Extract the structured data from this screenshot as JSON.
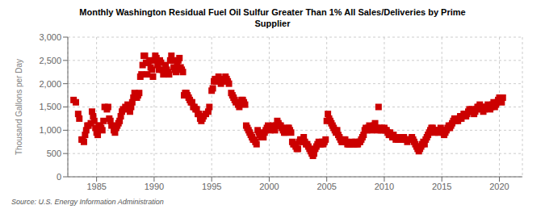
{
  "chart_data": {
    "type": "scatter",
    "title": "Monthly Washington Residual Fuel Oil Sulfur Greater Than 1% All Sales/Deliveries by Prime\nSupplier",
    "ylabel": "Thousand Gallons per Day",
    "annotations": [
      "Source: U.S. Energy Information Administration"
    ],
    "color": "#cc0000",
    "marker": "square",
    "grid": true,
    "xlim": [
      1982.5,
      2022.0
    ],
    "ylim": [
      0,
      3000
    ],
    "xticks": [
      1985,
      1990,
      1995,
      2000,
      2005,
      2010,
      2015,
      2020
    ],
    "yticks": [
      0,
      500,
      {
        "value": 1000,
        "label": "1,000"
      },
      {
        "value": 1500,
        "label": "1,500"
      },
      {
        "value": 2000,
        "label": "2,000"
      },
      {
        "value": 2500,
        "label": "2,500"
      },
      {
        "value": 3000,
        "label": "3,000"
      }
    ],
    "x": [
      1983.0,
      1983.2,
      1983.4,
      1983.5,
      1983.7,
      1983.8,
      1983.9,
      1984.0,
      1984.1,
      1984.2,
      1984.3,
      1984.5,
      1984.6,
      1984.7,
      1984.8,
      1984.9,
      1985.0,
      1985.1,
      1985.2,
      1985.3,
      1985.4,
      1985.5,
      1985.6,
      1985.7,
      1985.9,
      1986.0,
      1986.1,
      1986.2,
      1986.3,
      1986.5,
      1986.6,
      1986.7,
      1986.8,
      1986.9,
      1987.0,
      1987.1,
      1987.2,
      1987.3,
      1987.5,
      1987.7,
      1987.8,
      1987.9,
      1988.0,
      1988.1,
      1988.2,
      1988.3,
      1988.4,
      1988.5,
      1988.6,
      1988.7,
      1988.8,
      1988.9,
      1989.0,
      1989.1,
      1989.2,
      1989.3,
      1989.4,
      1989.5,
      1989.6,
      1989.7,
      1989.8,
      1989.9,
      1990.0,
      1990.1,
      1990.2,
      1990.3,
      1990.4,
      1990.5,
      1990.6,
      1990.7,
      1990.8,
      1990.9,
      1991.0,
      1991.1,
      1991.2,
      1991.3,
      1991.4,
      1991.5,
      1991.6,
      1991.7,
      1991.8,
      1991.9,
      1992.0,
      1992.1,
      1992.2,
      1992.3,
      1992.4,
      1992.5,
      1992.6,
      1992.7,
      1992.8,
      1992.9,
      1993.0,
      1993.1,
      1993.2,
      1993.3,
      1993.4,
      1993.5,
      1993.6,
      1993.7,
      1993.8,
      1993.9,
      1994.0,
      1994.1,
      1994.2,
      1994.3,
      1994.5,
      1994.7,
      1994.8,
      1995.0,
      1995.1,
      1995.2,
      1995.3,
      1995.4,
      1995.5,
      1995.6,
      1995.7,
      1995.8,
      1995.9,
      1996.0,
      1996.1,
      1996.2,
      1996.3,
      1996.4,
      1996.5,
      1996.7,
      1996.8,
      1996.9,
      1997.0,
      1997.1,
      1997.3,
      1997.4,
      1997.5,
      1997.6,
      1997.7,
      1997.8,
      1997.9,
      1998.0,
      1998.1,
      1998.2,
      1998.3,
      1998.4,
      1998.5,
      1998.6,
      1998.7,
      1998.8,
      1998.9,
      1999.0,
      1999.1,
      1999.2,
      1999.3,
      1999.4,
      1999.5,
      1999.6,
      1999.7,
      1999.8,
      1999.9,
      2000.0,
      2000.1,
      2000.2,
      2000.3,
      2000.4,
      2000.5,
      2000.6,
      2000.7,
      2000.8,
      2000.9,
      2001.0,
      2001.1,
      2001.2,
      2001.3,
      2001.4,
      2001.5,
      2001.6,
      2001.7,
      2001.8,
      2001.9,
      2002.0,
      2002.1,
      2002.2,
      2002.3,
      2002.4,
      2002.5,
      2002.6,
      2002.7,
      2002.8,
      2002.9,
      2003.0,
      2003.1,
      2003.2,
      2003.3,
      2003.4,
      2003.5,
      2003.6,
      2003.7,
      2003.8,
      2003.9,
      2004.0,
      2004.1,
      2004.2,
      2004.3,
      2004.4,
      2004.5,
      2004.6,
      2004.7,
      2004.8,
      2004.9,
      2005.0,
      2005.1,
      2005.2,
      2005.3,
      2005.4,
      2005.5,
      2005.6,
      2005.7,
      2005.8,
      2005.9,
      2006.0,
      2006.1,
      2006.2,
      2006.3,
      2006.4,
      2006.5,
      2006.6,
      2006.7,
      2006.8,
      2006.9,
      2007.0,
      2007.1,
      2007.2,
      2007.3,
      2007.4,
      2007.5,
      2007.6,
      2007.7,
      2007.8,
      2007.9,
      2008.0,
      2008.1,
      2008.2,
      2008.3,
      2008.4,
      2008.5,
      2008.6,
      2008.7,
      2008.8,
      2008.9,
      2009.0,
      2009.1,
      2009.2,
      2009.3,
      2009.4,
      2009.5,
      2009.6,
      2009.7,
      2009.8,
      2009.9,
      2010.0,
      2010.1,
      2010.2,
      2010.3,
      2010.4,
      2010.5,
      2010.6,
      2010.7,
      2010.8,
      2010.9,
      2011.0,
      2011.1,
      2011.2,
      2011.3,
      2011.4,
      2011.5,
      2011.6,
      2011.7,
      2011.8,
      2011.9,
      2012.0,
      2012.1,
      2012.2,
      2012.3,
      2012.4,
      2012.5,
      2012.6,
      2012.7,
      2012.8,
      2012.9,
      2013.0,
      2013.1,
      2013.2,
      2013.3,
      2013.4,
      2013.5,
      2013.6,
      2013.7,
      2013.8,
      2013.9,
      2014.0,
      2014.1,
      2014.2,
      2014.3,
      2014.4,
      2014.5,
      2014.6,
      2014.7,
      2014.8,
      2014.9,
      2015.0,
      2015.1,
      2015.2,
      2015.3,
      2015.4,
      2015.5,
      2015.6,
      2015.7,
      2015.8,
      2015.9,
      2016.0,
      2016.1,
      2016.2,
      2016.3,
      2016.4,
      2016.5,
      2016.6,
      2016.7,
      2016.8,
      2016.9,
      2017.0,
      2017.1,
      2017.2,
      2017.3,
      2017.4,
      2017.5,
      2017.6,
      2017.7,
      2017.8,
      2017.9,
      2018.0,
      2018.1,
      2018.2,
      2018.3,
      2018.4,
      2018.5,
      2018.6,
      2018.7,
      2018.8,
      2018.9,
      2019.0,
      2019.1,
      2019.2,
      2019.3,
      2019.4,
      2019.5,
      2019.6,
      2019.7,
      2019.8,
      2019.9,
      2020.0,
      2020.1,
      2020.2,
      2020.3
    ],
    "values": [
      1650,
      1600,
      1350,
      1250,
      800,
      800,
      750,
      900,
      1000,
      1100,
      1100,
      1150,
      1400,
      1300,
      1200,
      1050,
      950,
      900,
      1100,
      1100,
      1050,
      1000,
      1200,
      1500,
      1450,
      1500,
      1250,
      1200,
      1100,
      1000,
      950,
      1050,
      1100,
      1150,
      1200,
      1300,
      1400,
      1450,
      1500,
      1550,
      1450,
      1400,
      1500,
      1600,
      1700,
      1800,
      1750,
      1700,
      1750,
      1800,
      2150,
      2200,
      2400,
      2600,
      2600,
      2450,
      2200,
      2450,
      2500,
      2350,
      2300,
      2150,
      2500,
      2600,
      2550,
      2400,
      2300,
      2500,
      2450,
      2300,
      2200,
      2250,
      2400,
      2300,
      2250,
      2200,
      2500,
      2600,
      2500,
      2350,
      2300,
      2250,
      2400,
      2500,
      2550,
      2350,
      2300,
      2250,
      1750,
      1800,
      1800,
      1750,
      1700,
      1650,
      1600,
      1600,
      1500,
      1500,
      1450,
      1450,
      1350,
      1350,
      1250,
      1200,
      1250,
      1300,
      1350,
      1400,
      1500,
      1850,
      1900,
      2050,
      2100,
      2050,
      2100,
      2150,
      2050,
      2000,
      2050,
      2050,
      2100,
      2150,
      2100,
      2050,
      2000,
      1800,
      1750,
      1700,
      1650,
      1600,
      1550,
      1500,
      1600,
      1650,
      1650,
      1600,
      1550,
      1100,
      1050,
      1000,
      950,
      900,
      850,
      800,
      800,
      750,
      700,
      1000,
      950,
      900,
      850,
      900,
      850,
      950,
      1000,
      1050,
      1100,
      1050,
      1000,
      1050,
      1100,
      1050,
      1000,
      1100,
      1200,
      1150,
      1100,
      1100,
      1050,
      1000,
      950,
      950,
      1000,
      1050,
      1050,
      1000,
      950,
      750,
      700,
      700,
      650,
      600,
      600,
      750,
      800,
      800,
      750,
      850,
      750,
      700,
      700,
      650,
      600,
      550,
      500,
      450,
      500,
      600,
      650,
      700,
      750,
      700,
      700,
      750,
      700,
      750,
      800,
      1200,
      1350,
      1250,
      1200,
      1150,
      1100,
      1050,
      1000,
      950,
      1000,
      900,
      850,
      800,
      750,
      750,
      800,
      800,
      750,
      700,
      700,
      700,
      700,
      750,
      700,
      700,
      750,
      700,
      700,
      750,
      750,
      800,
      850,
      900,
      1000,
      1050,
      1000,
      1050,
      1100,
      1050,
      1000,
      1050,
      1100,
      1150,
      1050,
      1000,
      1500,
      1050,
      1000,
      1050,
      1000,
      1050,
      1000,
      1000,
      950,
      900,
      950,
      900,
      850,
      900,
      850,
      800,
      850,
      800,
      850,
      800,
      850,
      800,
      850,
      800,
      800,
      750,
      800,
      800,
      800,
      850,
      800,
      750,
      700,
      650,
      600,
      550,
      600,
      650,
      700,
      750,
      700,
      800,
      850,
      900,
      950,
      1000,
      1050,
      1050,
      1000,
      950,
      1000,
      1000,
      950,
      1000,
      1050,
      1000,
      950,
      900,
      950,
      1000,
      1050,
      1100,
      1050,
      1100,
      1150,
      1200,
      1250,
      1200,
      1250,
      1200,
      1250,
      1300,
      1250,
      1300,
      1350,
      1350,
      1300,
      1350,
      1400,
      1450,
      1400,
      1450,
      1400,
      1350,
      1400,
      1450,
      1500,
      1500,
      1550,
      1500,
      1450,
      1400,
      1450,
      1500,
      1500,
      1550,
      1500,
      1450,
      1500,
      1550,
      1600,
      1500,
      1550,
      1600,
      1650,
      1700,
      1650,
      1600,
      1700
    ]
  }
}
